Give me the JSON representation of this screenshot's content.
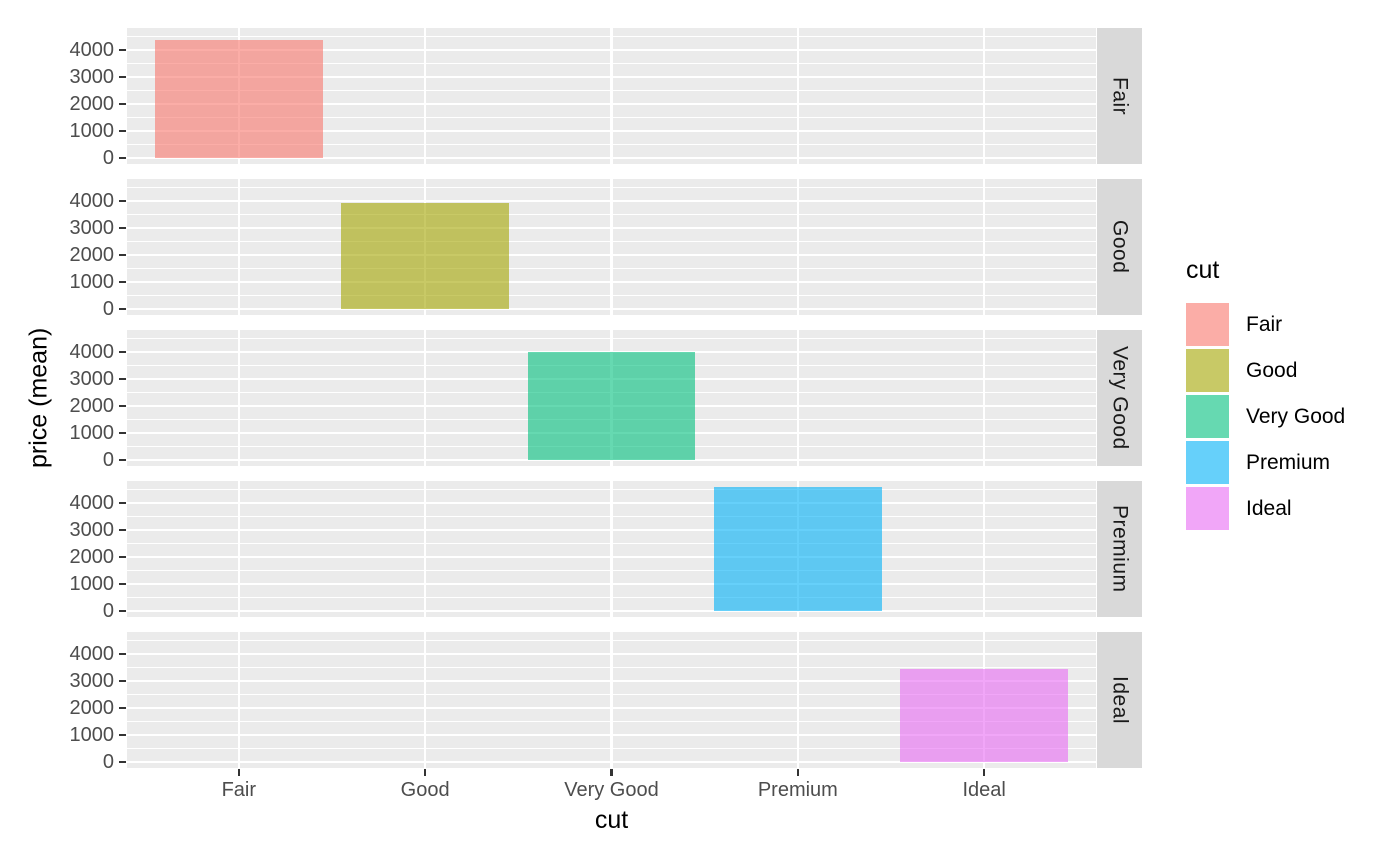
{
  "chart_data": {
    "type": "bar",
    "title": "",
    "xlabel": "cut",
    "ylabel": "price (mean)",
    "categories": [
      "Fair",
      "Good",
      "Very Good",
      "Premium",
      "Ideal"
    ],
    "series": [
      {
        "name": "price (mean)",
        "values": [
          4358.76,
          3928.86,
          3981.76,
          4584.26,
          3457.54
        ]
      }
    ],
    "facets": {
      "orientation": "rows",
      "labels": [
        "Fair",
        "Good",
        "Very Good",
        "Premium",
        "Ideal"
      ],
      "note": "each facet row shows only the bar of its own cut category"
    },
    "y_ticks": [
      0,
      1000,
      2000,
      3000,
      4000
    ],
    "y_minor_ticks": [
      500,
      1500,
      2500,
      3500,
      4500
    ],
    "ylim": [
      -229,
      4814
    ],
    "bar_width_fraction": 0.9,
    "bar_alpha": 0.6,
    "bar_colors": [
      "#F8766D",
      "#A3A500",
      "#00BF7D",
      "#00B0F6",
      "#E76BF3"
    ],
    "legend": {
      "title": "cut",
      "position": "right",
      "entries": [
        {
          "label": "Fair",
          "color": "#F8766D"
        },
        {
          "label": "Good",
          "color": "#A3A500"
        },
        {
          "label": "Very Good",
          "color": "#00BF7D"
        },
        {
          "label": "Premium",
          "color": "#00B0F6"
        },
        {
          "label": "Ideal",
          "color": "#E76BF3"
        }
      ]
    },
    "grid": true,
    "style": {
      "background": "#FFFFFF",
      "panel_bg": "#EBEBEB",
      "strip_bg": "#D9D9D9",
      "grid_color": "#FFFFFF",
      "tick_label_color": "#4D4D4D",
      "strip_text_color": "#1A1A1A",
      "axis_title_color": "#000000",
      "tick_mark_color": "#333333"
    }
  }
}
